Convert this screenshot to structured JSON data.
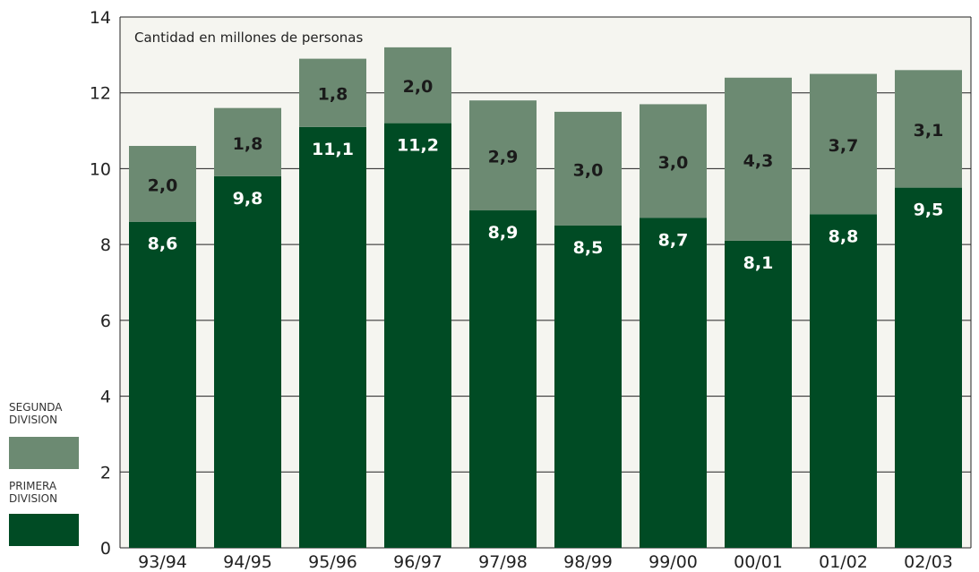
{
  "chart_data": {
    "type": "bar",
    "stacked": true,
    "subtitle": "Cantidad en millones de personas",
    "categories": [
      "93/94",
      "94/95",
      "95/96",
      "96/97",
      "97/98",
      "98/99",
      "99/00",
      "00/01",
      "01/02",
      "02/03"
    ],
    "series": [
      {
        "name": "PRIMERA DIVISION",
        "color": "#004b24",
        "values": [
          8.6,
          9.8,
          11.1,
          11.2,
          8.9,
          8.5,
          8.7,
          8.1,
          8.8,
          9.5
        ],
        "labels": [
          "8,6",
          "9,8",
          "11,1",
          "11,2",
          "8,9",
          "8,5",
          "8,7",
          "8,1",
          "8,8",
          "9,5"
        ]
      },
      {
        "name": "SEGUNDA DIVISION",
        "color": "#6c8a72",
        "values": [
          2.0,
          1.8,
          1.8,
          2.0,
          2.9,
          3.0,
          3.0,
          4.3,
          3.7,
          3.1
        ],
        "labels": [
          "2,0",
          "1,8",
          "1,8",
          "2,0",
          "2,9",
          "3,0",
          "3,0",
          "4,3",
          "3,7",
          "3,1"
        ]
      }
    ],
    "yticks": [
      "0",
      "2",
      "4",
      "6",
      "8",
      "10",
      "12",
      "14"
    ],
    "ylim": [
      0,
      14
    ],
    "grid": true,
    "plot_background": "#f5f5f0",
    "legend_position": "bottom-left"
  },
  "legend": {
    "segunda": "SEGUNDA\nDIVISION",
    "primera": "PRIMERA\nDIVISION"
  }
}
